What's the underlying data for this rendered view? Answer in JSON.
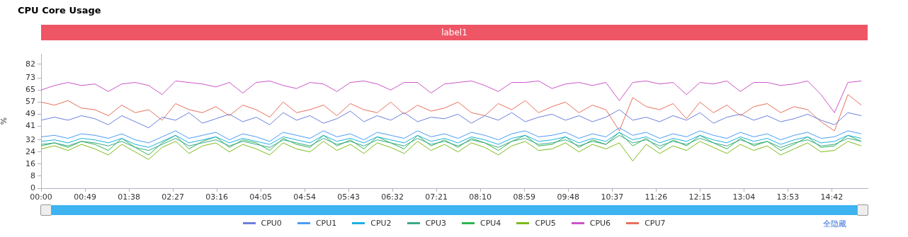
{
  "chart_data": {
    "type": "line",
    "title": "CPU Core Usage",
    "ylabel": "%",
    "annotations": [
      "label1",
      "全隐藏"
    ],
    "x": [
      0,
      15,
      30,
      45,
      60,
      75,
      90,
      105,
      120,
      135,
      150,
      165,
      180,
      195,
      210,
      225,
      240,
      255,
      270,
      285,
      300,
      315,
      330,
      345,
      360,
      375,
      390,
      405,
      420,
      435,
      450,
      465,
      480,
      495,
      510,
      525,
      540,
      555,
      570,
      585,
      600,
      615,
      630,
      645,
      660,
      675,
      690,
      705,
      720,
      735,
      750,
      765,
      780,
      795,
      810,
      825,
      840,
      855,
      870,
      885,
      900,
      915
    ],
    "xlim": [
      0,
      922
    ],
    "xticks": [
      {
        "value": 0,
        "label": "00:00"
      },
      {
        "value": 49,
        "label": "00:49"
      },
      {
        "value": 98,
        "label": "01:38"
      },
      {
        "value": 147,
        "label": "02:27"
      },
      {
        "value": 196,
        "label": "03:16"
      },
      {
        "value": 245,
        "label": "04:05"
      },
      {
        "value": 294,
        "label": "04:54"
      },
      {
        "value": 343,
        "label": "05:43"
      },
      {
        "value": 392,
        "label": "06:32"
      },
      {
        "value": 441,
        "label": "07:21"
      },
      {
        "value": 490,
        "label": "08:10"
      },
      {
        "value": 539,
        "label": "08:59"
      },
      {
        "value": 588,
        "label": "09:48"
      },
      {
        "value": 637,
        "label": "10:37"
      },
      {
        "value": 686,
        "label": "11:26"
      },
      {
        "value": 735,
        "label": "12:15"
      },
      {
        "value": 784,
        "label": "13:04"
      },
      {
        "value": 833,
        "label": "13:53"
      },
      {
        "value": 882,
        "label": "14:42"
      }
    ],
    "ylim": [
      0,
      89
    ],
    "yticks": [
      0,
      8,
      16,
      24,
      32,
      41,
      49,
      57,
      65,
      73,
      82
    ],
    "grid": false,
    "legend": "bottom",
    "marker": "none",
    "line_style": "solid",
    "series": [
      {
        "name": "CPU0",
        "color": "#6d7fdb",
        "values": [
          45,
          47,
          45,
          48,
          46,
          42,
          48,
          44,
          40,
          47,
          45,
          50,
          43,
          46,
          49,
          44,
          47,
          42,
          50,
          45,
          48,
          43,
          46,
          51,
          44,
          48,
          45,
          50,
          44,
          47,
          46,
          49,
          43,
          48,
          45,
          50,
          44,
          47,
          49,
          45,
          48,
          44,
          47,
          52,
          45,
          47,
          44,
          48,
          45,
          50,
          43,
          47,
          49,
          45,
          48,
          44,
          46,
          49,
          45,
          42,
          50,
          48
        ]
      },
      {
        "name": "CPU1",
        "color": "#4c9bf8",
        "values": [
          34,
          35,
          33,
          36,
          35,
          33,
          36,
          32,
          30,
          34,
          38,
          33,
          35,
          37,
          32,
          36,
          34,
          31,
          37,
          35,
          33,
          38,
          34,
          36,
          32,
          37,
          35,
          33,
          38,
          34,
          36,
          33,
          37,
          35,
          32,
          36,
          38,
          34,
          35,
          37,
          33,
          36,
          34,
          40,
          35,
          37,
          33,
          36,
          34,
          38,
          35,
          33,
          37,
          34,
          36,
          32,
          35,
          37,
          33,
          34,
          38,
          36
        ]
      },
      {
        "name": "CPU2",
        "color": "#1fb1e1",
        "values": [
          31,
          32,
          30,
          33,
          32,
          30,
          33,
          29,
          27,
          31,
          35,
          30,
          32,
          34,
          30,
          33,
          31,
          29,
          34,
          32,
          30,
          35,
          31,
          33,
          30,
          34,
          32,
          30,
          35,
          31,
          33,
          30,
          34,
          32,
          29,
          33,
          35,
          31,
          32,
          34,
          30,
          33,
          31,
          37,
          32,
          34,
          30,
          33,
          31,
          35,
          32,
          30,
          34,
          31,
          33,
          29,
          32,
          34,
          30,
          31,
          35,
          33
        ]
      },
      {
        "name": "CPU3",
        "color": "#3aa98a",
        "values": [
          29,
          30,
          28,
          31,
          30,
          28,
          31,
          27,
          25,
          29,
          33,
          28,
          30,
          32,
          28,
          31,
          29,
          27,
          32,
          30,
          28,
          33,
          29,
          31,
          28,
          32,
          30,
          28,
          33,
          29,
          31,
          28,
          32,
          30,
          27,
          31,
          33,
          29,
          30,
          32,
          28,
          31,
          29,
          35,
          30,
          32,
          28,
          31,
          29,
          33,
          30,
          28,
          32,
          29,
          31,
          27,
          30,
          32,
          28,
          29,
          33,
          31
        ]
      },
      {
        "name": "CPU4",
        "color": "#2db54f",
        "values": [
          28,
          30,
          27,
          31,
          29,
          25,
          33,
          27,
          22,
          30,
          35,
          26,
          31,
          34,
          27,
          32,
          30,
          25,
          33,
          29,
          27,
          35,
          28,
          32,
          26,
          34,
          30,
          26,
          35,
          28,
          32,
          27,
          33,
          30,
          25,
          31,
          35,
          28,
          29,
          34,
          27,
          32,
          29,
          37,
          28,
          33,
          26,
          32,
          28,
          35,
          30,
          26,
          33,
          28,
          31,
          25,
          29,
          34,
          27,
          28,
          35,
          31
        ]
      },
      {
        "name": "CPU5",
        "color": "#7cba1a",
        "values": [
          26,
          28,
          25,
          29,
          26,
          22,
          29,
          24,
          19,
          27,
          31,
          23,
          28,
          30,
          24,
          29,
          26,
          22,
          30,
          26,
          24,
          31,
          25,
          29,
          23,
          30,
          27,
          23,
          31,
          25,
          29,
          24,
          30,
          27,
          22,
          28,
          31,
          25,
          26,
          30,
          24,
          29,
          26,
          30,
          18,
          29,
          23,
          28,
          25,
          31,
          27,
          23,
          29,
          25,
          28,
          22,
          26,
          30,
          24,
          25,
          31,
          28
        ]
      },
      {
        "name": "CPU6",
        "color": "#cc55c8",
        "values": [
          65,
          68,
          70,
          68,
          69,
          64,
          69,
          70,
          68,
          62,
          71,
          70,
          69,
          67,
          70,
          63,
          70,
          71,
          68,
          66,
          70,
          69,
          64,
          70,
          71,
          69,
          65,
          70,
          70,
          63,
          69,
          70,
          71,
          68,
          64,
          70,
          70,
          71,
          66,
          69,
          70,
          68,
          70,
          58,
          70,
          71,
          69,
          70,
          62,
          70,
          69,
          71,
          64,
          70,
          70,
          68,
          69,
          71,
          62,
          50,
          70,
          71
        ]
      },
      {
        "name": "CPU7",
        "color": "#e8705a",
        "values": [
          57,
          55,
          58,
          53,
          52,
          48,
          55,
          50,
          52,
          45,
          56,
          52,
          50,
          54,
          48,
          55,
          52,
          47,
          57,
          50,
          52,
          55,
          48,
          56,
          52,
          50,
          57,
          49,
          55,
          51,
          53,
          57,
          50,
          48,
          56,
          52,
          58,
          50,
          54,
          57,
          50,
          55,
          52,
          38,
          60,
          54,
          52,
          56,
          46,
          57,
          50,
          55,
          48,
          54,
          56,
          50,
          54,
          52,
          44,
          38,
          62,
          55
        ]
      }
    ]
  }
}
